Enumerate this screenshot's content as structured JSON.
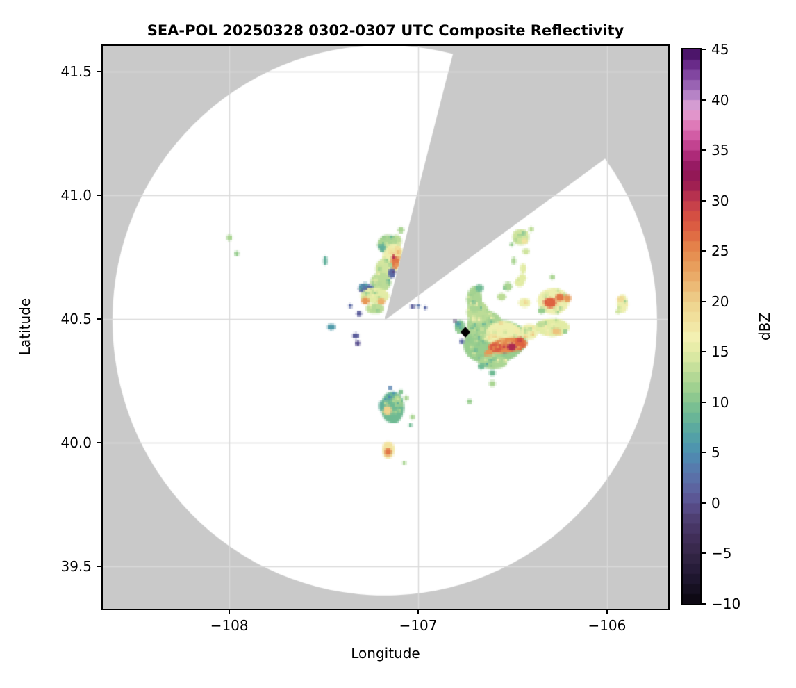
{
  "title": "SEA-POL 20250328 0302-0307 UTC Composite Reflectivity",
  "axes": {
    "x_label": "Longitude",
    "y_label": "Latitude",
    "lon_min": -108.67,
    "lon_max": -105.676,
    "lat_min": 39.329,
    "lat_max": 41.604,
    "x_ticks": [
      {
        "value": -108,
        "label": "−108"
      },
      {
        "value": -107,
        "label": "−107"
      },
      {
        "value": -106,
        "label": "−106"
      }
    ],
    "y_ticks": [
      {
        "value": 41.5,
        "label": "41.5"
      },
      {
        "value": 41.0,
        "label": "41.0"
      },
      {
        "value": 40.5,
        "label": "40.5"
      },
      {
        "value": 40.0,
        "label": "40.0"
      },
      {
        "value": 39.5,
        "label": "39.5"
      }
    ],
    "grid": true,
    "grid_color": "#d9d9d9",
    "background_outside_coverage": "#c9c9c9",
    "background_inside_coverage": "#ffffff"
  },
  "colorbar": {
    "label": "dBZ",
    "vmin": -10,
    "vmax": 45,
    "band_step": 1,
    "ticks": [
      {
        "value": 45,
        "label": "45"
      },
      {
        "value": 40,
        "label": "40"
      },
      {
        "value": 35,
        "label": "35"
      },
      {
        "value": 30,
        "label": "30"
      },
      {
        "value": 25,
        "label": "25"
      },
      {
        "value": 20,
        "label": "20"
      },
      {
        "value": 15,
        "label": "15"
      },
      {
        "value": 10,
        "label": "10"
      },
      {
        "value": 5,
        "label": "5"
      },
      {
        "value": 0,
        "label": "0"
      },
      {
        "value": -5,
        "label": "−5"
      },
      {
        "value": -10,
        "label": "−10"
      }
    ],
    "colormap_stops": [
      [
        -10,
        "#0a060e"
      ],
      [
        -7,
        "#221934"
      ],
      [
        -5,
        "#352647"
      ],
      [
        -3,
        "#43315e"
      ],
      [
        -1,
        "#524379"
      ],
      [
        0,
        "#5a5090"
      ],
      [
        2,
        "#5c6aa5"
      ],
      [
        4,
        "#5480af"
      ],
      [
        5,
        "#4c90b1"
      ],
      [
        7,
        "#55a5a3"
      ],
      [
        9,
        "#6fba93"
      ],
      [
        11,
        "#97cd8e"
      ],
      [
        13,
        "#bcdc97"
      ],
      [
        15,
        "#e2eca5"
      ],
      [
        16.5,
        "#f3f0b2"
      ],
      [
        18,
        "#f2e3a0"
      ],
      [
        20,
        "#eed18c"
      ],
      [
        22,
        "#ebb26e"
      ],
      [
        24,
        "#e79756"
      ],
      [
        25.5,
        "#e4814a"
      ],
      [
        27,
        "#de6341"
      ],
      [
        28.5,
        "#d44f43"
      ],
      [
        30,
        "#c13a4d"
      ],
      [
        31.5,
        "#a02052"
      ],
      [
        33,
        "#8c1458"
      ],
      [
        34.5,
        "#ad2a78"
      ],
      [
        36,
        "#cc4f9c"
      ],
      [
        37.5,
        "#de7ab8"
      ],
      [
        39,
        "#e2a3d4"
      ],
      [
        40,
        "#c695cf"
      ],
      [
        41,
        "#a571bd"
      ],
      [
        42.5,
        "#8146a0"
      ],
      [
        44,
        "#5d1d7e"
      ],
      [
        45,
        "#3a0c55"
      ]
    ]
  },
  "chart_data": {
    "type": "heatmap",
    "subtype": "radar-ppi-composite-reflectivity",
    "units": "dBZ",
    "radar": {
      "lon": -107.177,
      "lat": 40.495,
      "radius_lon_deg": 1.442,
      "radius_lat_deg": 1.112,
      "blocked_sector_azimuth_deg": [
        14.5,
        54
      ]
    },
    "site_marker": {
      "shape": "diamond",
      "color": "#000000",
      "lon": -106.75,
      "lat": 40.447
    },
    "echo_columns": [
      "lon",
      "lat",
      "w_deg",
      "h_deg",
      "rot_deg",
      "dbz"
    ],
    "echoes": [
      [
        -107.092,
        40.86,
        0.033,
        0.028,
        0,
        12
      ],
      [
        -107.118,
        40.815,
        0.059,
        0.051,
        0,
        13
      ],
      [
        -107.162,
        40.801,
        0.11,
        0.079,
        0,
        12
      ],
      [
        -107.188,
        40.787,
        0.037,
        0.034,
        0,
        8
      ],
      [
        -107.136,
        40.744,
        0.11,
        0.124,
        15,
        16
      ],
      [
        -107.121,
        40.733,
        0.044,
        0.062,
        10,
        26
      ],
      [
        -107.11,
        40.772,
        0.044,
        0.045,
        0,
        19
      ],
      [
        -107.18,
        40.702,
        0.096,
        0.084,
        0,
        14
      ],
      [
        -107.14,
        40.685,
        0.037,
        0.045,
        0,
        2
      ],
      [
        -107.199,
        40.649,
        0.11,
        0.079,
        0,
        13
      ],
      [
        -107.272,
        40.621,
        0.088,
        0.045,
        20,
        3
      ],
      [
        -107.261,
        40.618,
        0.029,
        0.022,
        0,
        -2
      ],
      [
        -107.228,
        40.593,
        0.154,
        0.067,
        0,
        15
      ],
      [
        -107.279,
        40.573,
        0.04,
        0.031,
        0,
        24
      ],
      [
        -107.195,
        40.57,
        0.044,
        0.028,
        0,
        22
      ],
      [
        -107.228,
        40.542,
        0.096,
        0.039,
        0,
        13
      ],
      [
        -107.312,
        40.522,
        0.029,
        0.022,
        0,
        1
      ],
      [
        -107.36,
        40.553,
        0.022,
        0.017,
        0,
        2
      ],
      [
        -107.331,
        40.433,
        0.04,
        0.02,
        0,
        1
      ],
      [
        -107.32,
        40.402,
        0.029,
        0.022,
        0,
        0
      ],
      [
        -107.46,
        40.466,
        0.048,
        0.025,
        0,
        6
      ],
      [
        -107.493,
        40.736,
        0.022,
        0.037,
        0,
        8
      ],
      [
        -108.0,
        40.829,
        0.033,
        0.025,
        0,
        12
      ],
      [
        -107.96,
        40.764,
        0.026,
        0.02,
        0,
        11
      ],
      [
        -107.029,
        40.551,
        0.026,
        0.017,
        0,
        1
      ],
      [
        -107.0,
        40.553,
        0.022,
        0.014,
        0,
        3
      ],
      [
        -106.963,
        40.545,
        0.018,
        0.014,
        0,
        2
      ],
      [
        -107.136,
        40.143,
        0.125,
        0.129,
        0,
        9
      ],
      [
        -107.162,
        40.132,
        0.048,
        0.037,
        0,
        20
      ],
      [
        -107.11,
        40.169,
        0.037,
        0.051,
        0,
        12
      ],
      [
        -107.195,
        40.149,
        0.029,
        0.039,
        0,
        8
      ],
      [
        -107.125,
        40.093,
        0.051,
        0.028,
        0,
        9
      ],
      [
        -107.092,
        40.205,
        0.026,
        0.02,
        0,
        10
      ],
      [
        -107.147,
        40.222,
        0.022,
        0.017,
        0,
        4
      ],
      [
        -107.063,
        40.18,
        0.026,
        0.02,
        0,
        12
      ],
      [
        -107.029,
        40.104,
        0.026,
        0.02,
        0,
        12
      ],
      [
        -107.04,
        40.07,
        0.022,
        0.017,
        0,
        9
      ],
      [
        -107.158,
        39.972,
        0.063,
        0.067,
        0,
        18
      ],
      [
        -107.158,
        39.963,
        0.037,
        0.031,
        0,
        26
      ],
      [
        -107.074,
        39.919,
        0.022,
        0.017,
        0,
        12
      ],
      [
        -106.592,
        40.407,
        0.338,
        0.174,
        -10,
        11
      ],
      [
        -106.647,
        40.475,
        0.191,
        0.124,
        0,
        12
      ],
      [
        -106.684,
        40.528,
        0.118,
        0.09,
        0,
        13
      ],
      [
        -106.702,
        40.581,
        0.081,
        0.107,
        0,
        12
      ],
      [
        -106.676,
        40.626,
        0.048,
        0.031,
        0,
        9
      ],
      [
        -106.548,
        40.438,
        0.191,
        0.107,
        0,
        16
      ],
      [
        -106.526,
        40.393,
        0.213,
        0.062,
        -8,
        25
      ],
      [
        -106.588,
        40.385,
        0.063,
        0.037,
        0,
        28
      ],
      [
        -106.504,
        40.388,
        0.048,
        0.031,
        0,
        31
      ],
      [
        -106.463,
        40.407,
        0.055,
        0.037,
        0,
        27
      ],
      [
        -106.625,
        40.36,
        0.048,
        0.031,
        0,
        24
      ],
      [
        -106.603,
        40.326,
        0.154,
        0.056,
        0,
        12
      ],
      [
        -106.665,
        40.309,
        0.04,
        0.025,
        0,
        9
      ],
      [
        -106.607,
        40.281,
        0.033,
        0.025,
        0,
        9
      ],
      [
        -106.607,
        40.239,
        0.033,
        0.025,
        0,
        12
      ],
      [
        -106.728,
        40.166,
        0.026,
        0.02,
        0,
        11
      ],
      [
        -106.412,
        40.449,
        0.096,
        0.062,
        0,
        16
      ],
      [
        -106.29,
        40.466,
        0.184,
        0.073,
        0,
        15
      ],
      [
        -106.268,
        40.449,
        0.048,
        0.025,
        0,
        21
      ],
      [
        -106.349,
        40.478,
        0.037,
        0.022,
        0,
        13
      ],
      [
        -106.283,
        40.573,
        0.169,
        0.107,
        0,
        16
      ],
      [
        -106.301,
        40.565,
        0.063,
        0.042,
        0,
        27
      ],
      [
        -106.25,
        40.587,
        0.048,
        0.031,
        0,
        26
      ],
      [
        -106.21,
        40.584,
        0.04,
        0.031,
        0,
        24
      ],
      [
        -106.346,
        40.534,
        0.04,
        0.025,
        0,
        11
      ],
      [
        -106.463,
        40.649,
        0.048,
        0.037,
        0,
        15
      ],
      [
        -106.437,
        40.565,
        0.063,
        0.037,
        0,
        16
      ],
      [
        -106.525,
        40.632,
        0.048,
        0.037,
        0,
        12
      ],
      [
        -106.559,
        40.59,
        0.048,
        0.031,
        0,
        13
      ],
      [
        -106.456,
        40.831,
        0.088,
        0.062,
        0,
        14
      ],
      [
        -106.437,
        40.815,
        0.033,
        0.025,
        0,
        18
      ],
      [
        -106.43,
        40.772,
        0.04,
        0.025,
        0,
        14
      ],
      [
        -106.493,
        40.736,
        0.026,
        0.031,
        0,
        12
      ],
      [
        -106.445,
        40.705,
        0.033,
        0.042,
        0,
        15
      ],
      [
        -106.449,
        40.666,
        0.04,
        0.037,
        0,
        15
      ],
      [
        -106.29,
        40.669,
        0.029,
        0.02,
        0,
        12
      ],
      [
        -106.401,
        40.862,
        0.026,
        0.02,
        0,
        13
      ],
      [
        -106.504,
        40.801,
        0.022,
        0.017,
        0,
        11
      ],
      [
        -106.779,
        40.469,
        0.055,
        0.053,
        0,
        10
      ],
      [
        -106.787,
        40.48,
        0.026,
        0.02,
        0,
        6
      ],
      [
        -106.768,
        40.41,
        0.026,
        0.02,
        0,
        2
      ],
      [
        -106.805,
        40.492,
        0.018,
        0.014,
        0,
        -2
      ],
      [
        -105.919,
        40.562,
        0.055,
        0.073,
        0,
        16
      ],
      [
        -105.926,
        40.581,
        0.033,
        0.025,
        0,
        19
      ],
      [
        -105.941,
        40.531,
        0.026,
        0.02,
        0,
        14
      ]
    ]
  }
}
